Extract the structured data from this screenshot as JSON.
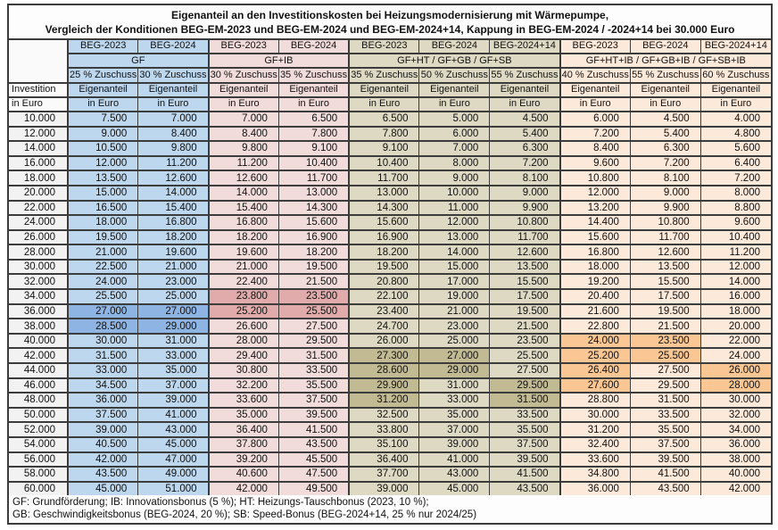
{
  "title": {
    "line1": "Eigenanteil an den Investitionskosten bei Heizungsmodernisierung mit Wärmepumpe,",
    "line2": "Vergleich der Konditionen BEG-EM-2023 und BEG-EM-2024 und BEG-EM-2024+14, Kappung in BEG-EM-2024 / -2024+14 bei 30.000 Euro"
  },
  "row_header": {
    "line1": "Investition",
    "line2": "in Euro"
  },
  "footer": {
    "line1": "GF: Grundförderung; IB: Innovationsbonus (5 %); HT: Heizungs-Tauschbonus (2023, 10 %);",
    "line2": "GB: Geschwindigkeitsbonus (BEG-2024, 20 %); SB: Speed-Bonus (BEG-2024+14, 25 % nur 2024/25)"
  },
  "colors": {
    "border": "#3C3C3C",
    "group_bg": [
      "#BDD7EE",
      "#F2DCDB",
      "#DDD9C3",
      "#FDE9D9"
    ],
    "group_highlight": [
      "#8EB4E3",
      "#E0ABAA",
      "#C2BA92",
      "#FAC693"
    ],
    "investment_col_bg": "#F2F2F2"
  },
  "chart_data": {
    "type": "table",
    "unit": "Euro",
    "groups": [
      {
        "label": "GF",
        "span": 2
      },
      {
        "label": "GF+IB",
        "span": 2
      },
      {
        "label": "GF+HT / GF+GB / GF+SB",
        "span": 3
      },
      {
        "label": "GF+HT+IB / GF+GB+IB / GF+SB+IB",
        "span": 3
      }
    ],
    "columns": [
      {
        "beg": "BEG-2023",
        "zuschuss": "25 % Zuschuss",
        "eigenanteil_label": "Eigenanteil",
        "unit_label": "in Euro",
        "group": 0
      },
      {
        "beg": "BEG-2024",
        "zuschuss": "30 % Zuschuss",
        "eigenanteil_label": "Eigenanteil",
        "unit_label": "in Euro",
        "group": 0
      },
      {
        "beg": "BEG-2023",
        "zuschuss": "30 % Zuschuss",
        "eigenanteil_label": "Eigenanteil",
        "unit_label": "in Euro",
        "group": 1
      },
      {
        "beg": "BEG-2024",
        "zuschuss": "35 % Zuschuss",
        "eigenanteil_label": "Eigenanteil",
        "unit_label": "in Euro",
        "group": 1
      },
      {
        "beg": "BEG-2023",
        "zuschuss": "35 % Zuschuss",
        "eigenanteil_label": "Eigenanteil",
        "unit_label": "in Euro",
        "group": 2
      },
      {
        "beg": "BEG-2024",
        "zuschuss": "50 % Zuschuss",
        "eigenanteil_label": "Eigenanteil",
        "unit_label": "in Euro",
        "group": 2
      },
      {
        "beg": "BEG-2024+14",
        "zuschuss": "55 % Zuschuss",
        "eigenanteil_label": "Eigenanteil",
        "unit_label": "in Euro",
        "group": 2
      },
      {
        "beg": "BEG-2023",
        "zuschuss": "40 % Zuschuss",
        "eigenanteil_label": "Eigenanteil",
        "unit_label": "in Euro",
        "group": 3
      },
      {
        "beg": "BEG-2024",
        "zuschuss": "55 % Zuschuss",
        "eigenanteil_label": "Eigenanteil",
        "unit_label": "in Euro",
        "group": 3
      },
      {
        "beg": "BEG-2024+14",
        "zuschuss": "60 % Zuschuss",
        "eigenanteil_label": "Eigenanteil",
        "unit_label": "in Euro",
        "group": 3
      }
    ],
    "investments": [
      "10.000",
      "12.000",
      "14.000",
      "16.000",
      "18.000",
      "20.000",
      "22.000",
      "24.000",
      "26.000",
      "28.000",
      "30.000",
      "32.000",
      "34.000",
      "36.000",
      "38.000",
      "40.000",
      "42.000",
      "44.000",
      "46.000",
      "48.000",
      "50.000",
      "52.000",
      "54.000",
      "56.000",
      "58.000",
      "60.000"
    ],
    "rows": [
      [
        "7.500",
        "7.000",
        "7.000",
        "6.500",
        "6.500",
        "5.000",
        "4.500",
        "6.000",
        "4.500",
        "4.000"
      ],
      [
        "9.000",
        "8.400",
        "8.400",
        "7.800",
        "7.800",
        "6.000",
        "5.400",
        "7.200",
        "5.400",
        "4.800"
      ],
      [
        "10.500",
        "9.800",
        "9.800",
        "9.100",
        "9.100",
        "7.000",
        "6.300",
        "8.400",
        "6.300",
        "5.600"
      ],
      [
        "12.000",
        "11.200",
        "11.200",
        "10.400",
        "10.400",
        "8.000",
        "7.200",
        "9.600",
        "7.200",
        "6.400"
      ],
      [
        "13.500",
        "12.600",
        "12.600",
        "11.700",
        "11.700",
        "9.000",
        "8.100",
        "10.800",
        "8.100",
        "7.200"
      ],
      [
        "15.000",
        "14.000",
        "14.000",
        "13.000",
        "13.000",
        "10.000",
        "9.000",
        "12.000",
        "9.000",
        "8.000"
      ],
      [
        "16.500",
        "15.400",
        "15.400",
        "14.300",
        "14.300",
        "11.000",
        "9.900",
        "13.200",
        "9.900",
        "8.800"
      ],
      [
        "18.000",
        "16.800",
        "16.800",
        "15.600",
        "15.600",
        "12.000",
        "10.800",
        "14.400",
        "10.800",
        "9.600"
      ],
      [
        "19.500",
        "18.200",
        "18.200",
        "16.900",
        "16.900",
        "13.000",
        "11.700",
        "15.600",
        "11.700",
        "10.400"
      ],
      [
        "21.000",
        "19.600",
        "19.600",
        "18.200",
        "18.200",
        "14.000",
        "12.600",
        "16.800",
        "12.600",
        "11.200"
      ],
      [
        "22.500",
        "21.000",
        "21.000",
        "19.500",
        "19.500",
        "15.000",
        "13.500",
        "18.000",
        "13.500",
        "12.000"
      ],
      [
        "24.000",
        "23.000",
        "22.400",
        "21.500",
        "20.800",
        "17.000",
        "15.500",
        "19.200",
        "15.500",
        "14.000"
      ],
      [
        "25.500",
        "25.000",
        "23.800",
        "23.500",
        "22.100",
        "19.000",
        "17.500",
        "20.400",
        "17.500",
        "16.000"
      ],
      [
        "27.000",
        "27.000",
        "25.200",
        "25.500",
        "23.400",
        "21.000",
        "19.500",
        "21.600",
        "19.500",
        "18.000"
      ],
      [
        "28.500",
        "29.000",
        "26.600",
        "27.500",
        "24.700",
        "23.000",
        "21.500",
        "22.800",
        "21.500",
        "20.000"
      ],
      [
        "30.000",
        "31.000",
        "28.000",
        "29.500",
        "26.000",
        "25.000",
        "23.500",
        "24.000",
        "23.500",
        "22.000"
      ],
      [
        "31.500",
        "33.000",
        "29.400",
        "31.500",
        "27.300",
        "27.000",
        "25.500",
        "25.200",
        "25.500",
        "24.000"
      ],
      [
        "33.000",
        "35.000",
        "30.800",
        "33.500",
        "28.600",
        "29.000",
        "27.500",
        "26.400",
        "27.500",
        "26.000"
      ],
      [
        "34.500",
        "37.000",
        "32.200",
        "35.500",
        "29.900",
        "31.000",
        "29.500",
        "27.600",
        "29.500",
        "28.000"
      ],
      [
        "36.000",
        "39.000",
        "33.600",
        "37.500",
        "31.200",
        "33.000",
        "31.500",
        "28.800",
        "31.500",
        "30.000"
      ],
      [
        "37.500",
        "41.000",
        "35.000",
        "39.500",
        "32.500",
        "35.000",
        "33.500",
        "30.000",
        "33.500",
        "32.000"
      ],
      [
        "39.000",
        "43.000",
        "36.400",
        "41.500",
        "33.800",
        "37.000",
        "35.500",
        "31.200",
        "35.500",
        "34.000"
      ],
      [
        "40.500",
        "45.000",
        "37.800",
        "43.500",
        "35.100",
        "39.000",
        "37.500",
        "32.400",
        "37.500",
        "36.000"
      ],
      [
        "42.000",
        "47.000",
        "39.200",
        "45.500",
        "36.400",
        "41.000",
        "39.500",
        "33.600",
        "39.500",
        "38.000"
      ],
      [
        "43.500",
        "49.000",
        "40.600",
        "47.500",
        "37.700",
        "43.000",
        "41.500",
        "34.800",
        "41.500",
        "40.000"
      ],
      [
        "45.000",
        "51.000",
        "42.000",
        "49.500",
        "39.000",
        "45.000",
        "43.500",
        "36.000",
        "43.500",
        "42.000"
      ]
    ],
    "highlighted_cells": {
      "12": [
        2,
        3
      ],
      "13": [
        0,
        1,
        2,
        3
      ],
      "14": [
        0,
        1
      ],
      "15": [
        7,
        8
      ],
      "16": [
        4,
        5,
        7,
        8
      ],
      "17": [
        4,
        5,
        7,
        9
      ],
      "18": [
        4,
        6,
        7,
        9
      ],
      "19": [
        4,
        6
      ]
    }
  }
}
